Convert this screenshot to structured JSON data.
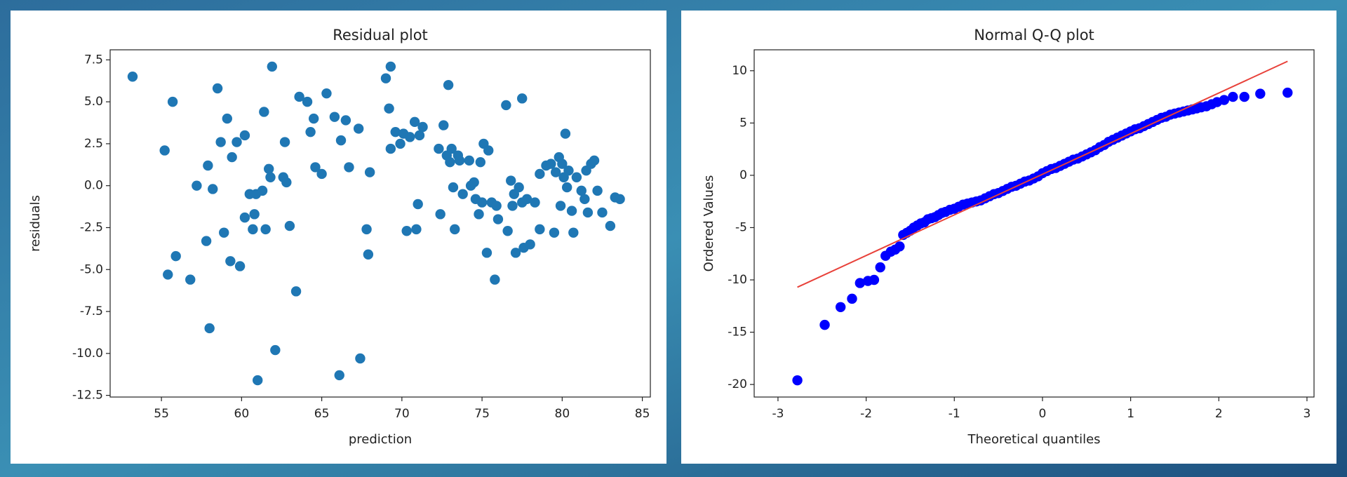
{
  "chart_data": [
    {
      "type": "scatter",
      "title": "Residual plot",
      "xlabel": "prediction",
      "ylabel": "residuals",
      "color": "#1f77b4",
      "xlim": [
        51.8,
        85.5
      ],
      "ylim": [
        -12.6,
        8.1
      ],
      "xticks": [
        55,
        60,
        65,
        70,
        75,
        80,
        85
      ],
      "yticks": [
        7.5,
        {
          "value": 5,
          "label": "5.0"
        },
        2.5,
        {
          "value": 0,
          "label": "0.0"
        },
        -2.5,
        {
          "value": -5,
          "label": "-5.0"
        },
        -7.5,
        {
          "value": -10,
          "label": "-10.0"
        },
        -12.5
      ],
      "x": [
        53.2,
        55.2,
        55.4,
        55.7,
        55.9,
        56.8,
        57.2,
        57.8,
        57.9,
        58.0,
        58.2,
        58.5,
        58.7,
        58.9,
        59.1,
        59.3,
        59.4,
        59.7,
        59.9,
        60.2,
        60.2,
        60.5,
        60.7,
        60.8,
        60.9,
        61.0,
        61.3,
        61.4,
        61.5,
        61.7,
        61.8,
        61.9,
        62.1,
        62.6,
        62.7,
        62.8,
        63.0,
        63.4,
        63.6,
        64.1,
        64.3,
        64.5,
        64.6,
        65.0,
        65.3,
        65.8,
        66.1,
        66.2,
        66.5,
        66.7,
        67.3,
        67.4,
        67.8,
        67.9,
        68.0,
        69.0,
        69.2,
        69.3,
        69.3,
        69.6,
        69.9,
        70.1,
        70.3,
        70.5,
        70.8,
        70.9,
        71.0,
        71.1,
        71.3,
        72.3,
        72.4,
        72.6,
        72.8,
        72.9,
        73.0,
        73.1,
        73.2,
        73.3,
        73.5,
        73.6,
        73.8,
        74.2,
        74.3,
        74.5,
        74.6,
        74.8,
        74.9,
        75.0,
        75.1,
        75.3,
        75.4,
        75.6,
        75.8,
        75.9,
        76.0,
        76.5,
        76.6,
        76.8,
        76.9,
        77.0,
        77.1,
        77.3,
        77.5,
        77.5,
        77.6,
        77.8,
        78.0,
        78.3,
        78.6,
        78.6,
        79.0,
        79.3,
        79.5,
        79.6,
        79.8,
        79.9,
        80.0,
        80.1,
        80.2,
        80.3,
        80.4,
        80.6,
        80.7,
        80.9,
        81.2,
        81.4,
        81.5,
        81.6,
        81.8,
        82.0,
        82.2,
        82.5,
        83.0,
        83.3,
        83.6
      ],
      "values": [
        6.5,
        2.1,
        -5.3,
        5.0,
        -4.2,
        -5.6,
        0.0,
        -3.3,
        1.2,
        -8.5,
        -0.2,
        5.8,
        2.6,
        -2.8,
        4.0,
        -4.5,
        1.7,
        2.6,
        -4.8,
        3.0,
        -1.9,
        -0.5,
        -2.6,
        -1.7,
        -0.5,
        -11.6,
        -0.3,
        4.4,
        -2.6,
        1.0,
        0.5,
        7.1,
        -9.8,
        0.5,
        2.6,
        0.2,
        -2.4,
        -6.3,
        5.3,
        5.0,
        3.2,
        4.0,
        1.1,
        0.7,
        5.5,
        4.1,
        -11.3,
        2.7,
        3.9,
        1.1,
        3.4,
        -10.3,
        -2.6,
        -4.1,
        0.8,
        6.4,
        4.6,
        7.1,
        2.2,
        3.2,
        2.5,
        3.1,
        -2.7,
        2.9,
        3.8,
        -2.6,
        -1.1,
        3.0,
        3.5,
        2.2,
        -1.7,
        3.6,
        1.8,
        6.0,
        1.4,
        2.2,
        -0.1,
        -2.6,
        1.8,
        1.5,
        -0.5,
        1.5,
        0.0,
        0.2,
        -0.8,
        -1.7,
        1.4,
        -1.0,
        2.5,
        -4.0,
        2.1,
        -1.0,
        -5.6,
        -1.2,
        -2.0,
        4.8,
        -2.7,
        0.3,
        -1.2,
        -0.5,
        -4.0,
        -0.1,
        5.2,
        -1.0,
        -3.7,
        -0.8,
        -3.5,
        -1.0,
        -2.6,
        0.7,
        1.2,
        1.3,
        -2.8,
        0.8,
        1.7,
        -1.2,
        1.3,
        0.5,
        3.1,
        -0.1,
        0.9,
        -1.5,
        -2.8,
        0.5,
        -0.3,
        -0.8,
        0.9,
        -1.6,
        1.3,
        1.5,
        -0.3,
        -1.6,
        -2.4,
        -0.7,
        -0.8
      ]
    },
    {
      "type": "scatter",
      "title": "Normal Q-Q plot",
      "xlabel": "Theoretical quantiles",
      "ylabel": "Ordered Values",
      "color": "#0000ff",
      "xlim": [
        -3.27,
        3.08
      ],
      "ylim": [
        -21.2,
        12
      ],
      "xticks": [
        -3,
        -2,
        -1,
        0,
        1,
        2,
        3
      ],
      "yticks": [
        10,
        5,
        0,
        -5,
        -10,
        -15,
        -20
      ],
      "x": [
        -2.78,
        -2.47,
        -2.29,
        -2.16,
        -2.07,
        -1.98,
        -1.91,
        -1.84,
        -1.78,
        -1.72,
        -1.67,
        -1.62,
        -1.58,
        -1.54,
        -1.5,
        -1.46,
        -1.42,
        -1.38,
        -1.34,
        -1.3,
        -1.26,
        -1.22,
        -1.18,
        -1.14,
        -1.1,
        -1.05,
        -1.0,
        -0.95,
        -0.9,
        -0.85,
        -0.8,
        -0.75,
        -0.7,
        -0.65,
        -0.6,
        -0.55,
        -0.5,
        -0.45,
        -0.4,
        -0.35,
        -0.3,
        -0.25,
        -0.2,
        -0.15,
        -0.1,
        -0.05,
        0,
        0.05,
        0.1,
        0.15,
        0.2,
        0.25,
        0.3,
        0.35,
        0.4,
        0.45,
        0.5,
        0.55,
        0.6,
        0.65,
        0.7,
        0.75,
        0.8,
        0.85,
        0.9,
        0.95,
        1.0,
        1.05,
        1.1,
        1.15,
        1.2,
        1.25,
        1.3,
        1.35,
        1.4,
        1.45,
        1.5,
        1.55,
        1.6,
        1.65,
        1.7,
        1.75,
        1.8,
        1.86,
        1.92,
        1.98,
        2.06,
        2.16,
        2.29,
        2.47,
        2.78
      ],
      "values": [
        -19.6,
        -14.3,
        -12.6,
        -11.8,
        -10.3,
        -10.1,
        -10.0,
        -8.8,
        -7.7,
        -7.3,
        -7.1,
        -6.8,
        -5.7,
        -5.5,
        -5.3,
        -5.0,
        -4.8,
        -4.6,
        -4.5,
        -4.2,
        -4.1,
        -4.0,
        -3.8,
        -3.6,
        -3.5,
        -3.3,
        -3.2,
        -3.0,
        -2.8,
        -2.7,
        -2.6,
        -2.5,
        -2.4,
        -2.2,
        -2.0,
        -1.8,
        -1.7,
        -1.5,
        -1.3,
        -1.1,
        -1.0,
        -0.8,
        -0.6,
        -0.5,
        -0.3,
        -0.1,
        0.2,
        0.4,
        0.6,
        0.7,
        0.9,
        1.1,
        1.3,
        1.5,
        1.6,
        1.8,
        2.0,
        2.2,
        2.4,
        2.7,
        2.9,
        3.2,
        3.4,
        3.6,
        3.8,
        4.0,
        4.2,
        4.4,
        4.5,
        4.7,
        4.9,
        5.1,
        5.3,
        5.5,
        5.6,
        5.8,
        5.9,
        6.0,
        6.1,
        6.2,
        6.3,
        6.4,
        6.5,
        6.6,
        6.8,
        7.0,
        7.2,
        7.5,
        7.5,
        7.8,
        7.9
      ],
      "fit_line": {
        "x": [
          -2.78,
          2.78
        ],
        "values": [
          -10.7,
          10.9
        ],
        "color": "#e8413a"
      }
    }
  ]
}
